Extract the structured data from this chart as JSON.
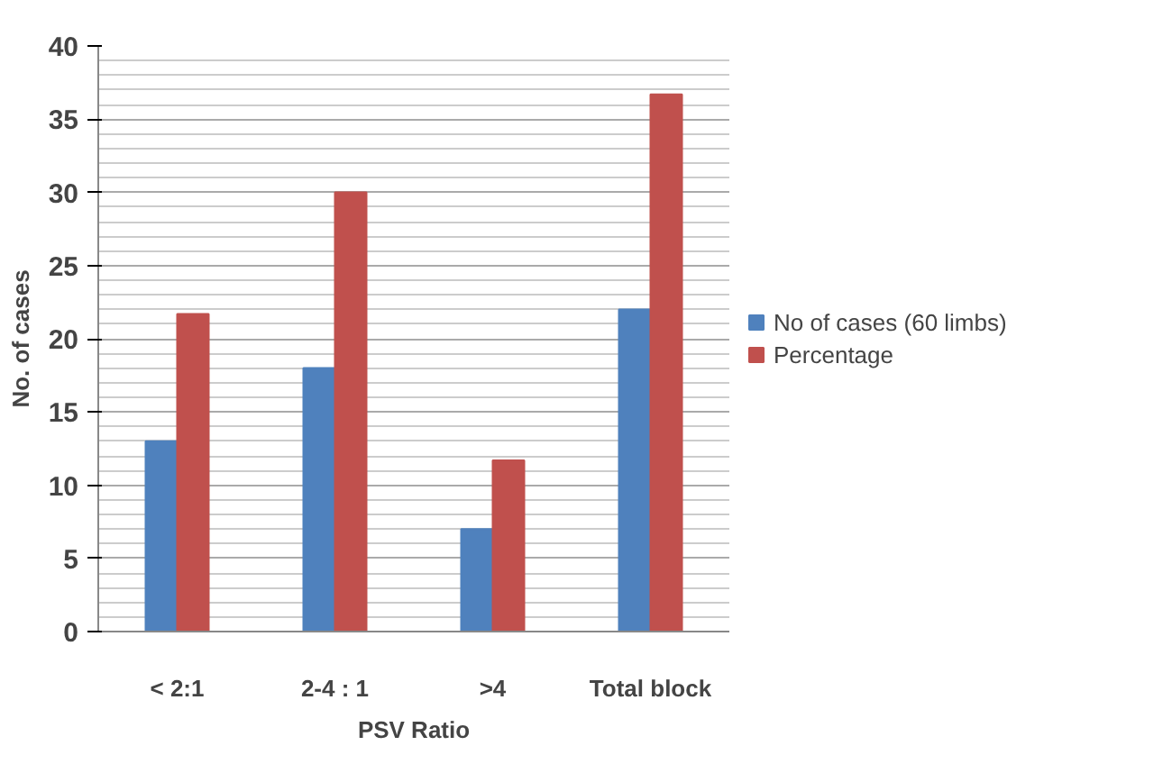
{
  "chart_data": {
    "type": "bar",
    "xlabel": "PSV Ratio",
    "ylabel": "No. of cases",
    "categories": [
      "< 2:1",
      "2-4 : 1",
      ">4",
      "Total block"
    ],
    "series": [
      {
        "name": "No of cases (60 limbs)",
        "color": "#4f81bd",
        "values": [
          13,
          18,
          7,
          22
        ]
      },
      {
        "name": "Percentage",
        "color": "#c0504d",
        "values": [
          21.7,
          30,
          11.7,
          36.7
        ]
      }
    ],
    "ylim": [
      0,
      40
    ],
    "yticks": [
      0,
      5,
      10,
      15,
      20,
      25,
      30,
      35,
      40
    ],
    "grid": "y",
    "legend": "right"
  }
}
